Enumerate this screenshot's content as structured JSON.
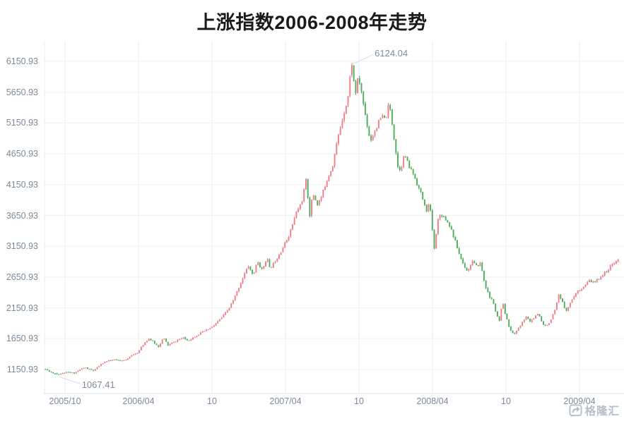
{
  "watermark": {
    "text": "格隆汇",
    "logo": "gelonghui-arrow-logo",
    "color": "#b6bfc9"
  },
  "chart_data": {
    "type": "candlestick",
    "title": "上涨指数2006-2008年走势",
    "xlabel": "",
    "ylabel": "",
    "grid": true,
    "legend": "none",
    "y_ticks": [
      "6150.93",
      "5650.93",
      "5150.93",
      "4650.93",
      "4150.93",
      "3650.93",
      "3150.93",
      "2650.93",
      "2150.93",
      "1650.93",
      "1150.93"
    ],
    "y_range": [
      1150.93,
      6150.93
    ],
    "x_ticks": [
      "2005/10",
      "2006/04",
      "10",
      "2007/04",
      "10",
      "2008/04",
      "10",
      "2009/04"
    ],
    "annotations": {
      "peak": {
        "label": "6124.04",
        "value": 6124.04,
        "t": 0.534
      },
      "trough": {
        "label": "1067.41",
        "value": 1067.41,
        "t": 0.023
      }
    },
    "colors": {
      "up_body": "#ee7e88",
      "up_wick": "#e25965",
      "down_body": "#4fae5e",
      "down_wick": "#2f9446",
      "grid": "#edf0f3",
      "vgrid": "#e9edf1",
      "axis_line": "#dde2e8",
      "label": "#7c8a98",
      "annotation": "#7e8c9a",
      "title": "#1a1a1a",
      "connector": "#d5dbe1"
    },
    "candles": 300,
    "noise": 0.016,
    "anchor_format": "[fraction of x-axis 0-1, index close value]",
    "anchors": [
      [
        0.0,
        1160
      ],
      [
        0.009,
        1120
      ],
      [
        0.016,
        1085
      ],
      [
        0.023,
        1067
      ],
      [
        0.031,
        1090
      ],
      [
        0.039,
        1105
      ],
      [
        0.052,
        1095
      ],
      [
        0.062,
        1150
      ],
      [
        0.07,
        1185
      ],
      [
        0.079,
        1150
      ],
      [
        0.086,
        1130
      ],
      [
        0.095,
        1210
      ],
      [
        0.103,
        1270
      ],
      [
        0.113,
        1295
      ],
      [
        0.123,
        1310
      ],
      [
        0.133,
        1285
      ],
      [
        0.144,
        1330
      ],
      [
        0.156,
        1400
      ],
      [
        0.164,
        1445
      ],
      [
        0.172,
        1560
      ],
      [
        0.181,
        1655
      ],
      [
        0.189,
        1600
      ],
      [
        0.198,
        1520
      ],
      [
        0.207,
        1665
      ],
      [
        0.215,
        1545
      ],
      [
        0.224,
        1590
      ],
      [
        0.232,
        1630
      ],
      [
        0.241,
        1665
      ],
      [
        0.25,
        1620
      ],
      [
        0.26,
        1680
      ],
      [
        0.271,
        1740
      ],
      [
        0.282,
        1790
      ],
      [
        0.292,
        1840
      ],
      [
        0.301,
        1920
      ],
      [
        0.311,
        2020
      ],
      [
        0.321,
        2140
      ],
      [
        0.33,
        2300
      ],
      [
        0.338,
        2480
      ],
      [
        0.347,
        2680
      ],
      [
        0.355,
        2830
      ],
      [
        0.363,
        2680
      ],
      [
        0.371,
        2900
      ],
      [
        0.379,
        2760
      ],
      [
        0.387,
        2980
      ],
      [
        0.392,
        2780
      ],
      [
        0.4,
        2890
      ],
      [
        0.41,
        3050
      ],
      [
        0.419,
        3200
      ],
      [
        0.428,
        3400
      ],
      [
        0.438,
        3690
      ],
      [
        0.448,
        3880
      ],
      [
        0.456,
        4260
      ],
      [
        0.461,
        3620
      ],
      [
        0.467,
        4010
      ],
      [
        0.475,
        3830
      ],
      [
        0.482,
        3950
      ],
      [
        0.49,
        4190
      ],
      [
        0.501,
        4450
      ],
      [
        0.51,
        4880
      ],
      [
        0.52,
        5280
      ],
      [
        0.528,
        5560
      ],
      [
        0.534,
        6080
      ],
      [
        0.539,
        5780
      ],
      [
        0.542,
        5640
      ],
      [
        0.546,
        5900
      ],
      [
        0.551,
        5700
      ],
      [
        0.556,
        5400
      ],
      [
        0.561,
        5150
      ],
      [
        0.567,
        4860
      ],
      [
        0.573,
        4990
      ],
      [
        0.579,
        5110
      ],
      [
        0.587,
        5260
      ],
      [
        0.593,
        5200
      ],
      [
        0.6,
        5470
      ],
      [
        0.606,
        5080
      ],
      [
        0.611,
        4730
      ],
      [
        0.616,
        4370
      ],
      [
        0.622,
        4480
      ],
      [
        0.627,
        4650
      ],
      [
        0.633,
        4460
      ],
      [
        0.641,
        4350
      ],
      [
        0.648,
        4180
      ],
      [
        0.657,
        3960
      ],
      [
        0.664,
        3720
      ],
      [
        0.67,
        3850
      ],
      [
        0.675,
        3420
      ],
      [
        0.679,
        3040
      ],
      [
        0.683,
        3540
      ],
      [
        0.69,
        3680
      ],
      [
        0.697,
        3610
      ],
      [
        0.706,
        3480
      ],
      [
        0.713,
        3280
      ],
      [
        0.722,
        3020
      ],
      [
        0.729,
        2860
      ],
      [
        0.737,
        2740
      ],
      [
        0.744,
        2920
      ],
      [
        0.751,
        2820
      ],
      [
        0.759,
        2880
      ],
      [
        0.766,
        2550
      ],
      [
        0.774,
        2330
      ],
      [
        0.781,
        2250
      ],
      [
        0.787,
        2020
      ],
      [
        0.792,
        1930
      ],
      [
        0.797,
        2250
      ],
      [
        0.803,
        2010
      ],
      [
        0.809,
        1840
      ],
      [
        0.817,
        1700
      ],
      [
        0.823,
        1810
      ],
      [
        0.83,
        1880
      ],
      [
        0.838,
        2010
      ],
      [
        0.845,
        1930
      ],
      [
        0.853,
        2000
      ],
      [
        0.86,
        2050
      ],
      [
        0.867,
        1890
      ],
      [
        0.875,
        1870
      ],
      [
        0.882,
        1970
      ],
      [
        0.889,
        2120
      ],
      [
        0.895,
        2350
      ],
      [
        0.902,
        2230
      ],
      [
        0.907,
        2100
      ],
      [
        0.914,
        2210
      ],
      [
        0.921,
        2340
      ],
      [
        0.931,
        2450
      ],
      [
        0.94,
        2500
      ],
      [
        0.948,
        2590
      ],
      [
        0.957,
        2560
      ],
      [
        0.966,
        2640
      ],
      [
        0.974,
        2710
      ],
      [
        0.983,
        2790
      ],
      [
        0.991,
        2890
      ],
      [
        1.0,
        2930
      ]
    ]
  }
}
